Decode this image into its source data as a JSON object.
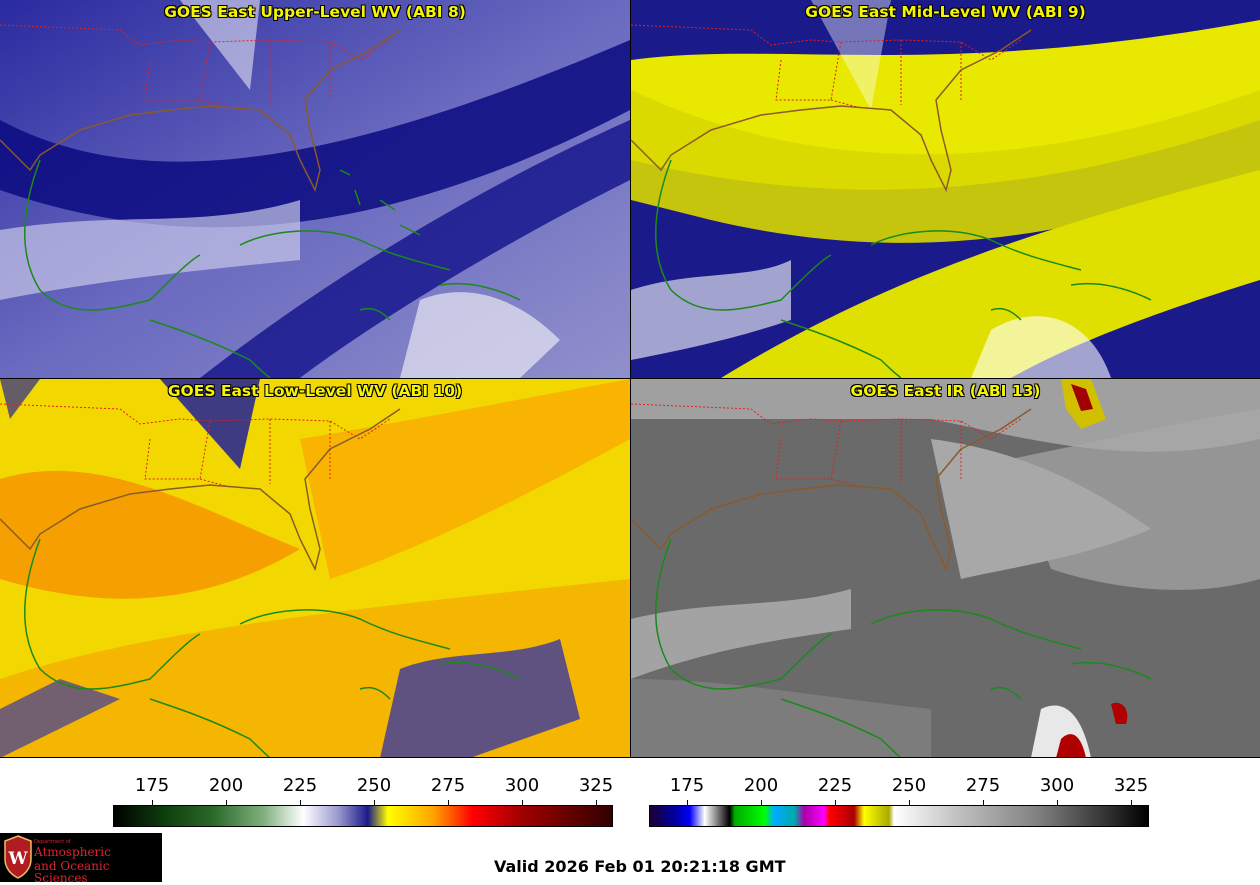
{
  "panels": [
    {
      "title": "GOES East Upper-Level WV (ABI 8)",
      "colormap": "wv"
    },
    {
      "title": "GOES East Mid-Level WV (ABI 9)",
      "colormap": "wv-yellow"
    },
    {
      "title": "GOES East Low-Level WV (ABI 10)",
      "colormap": "wv-orange"
    },
    {
      "title": "GOES East IR (ABI 13)",
      "colormap": "ir-gray"
    }
  ],
  "colorbars": [
    {
      "ticks": [
        "175",
        "200",
        "225",
        "250",
        "275",
        "300",
        "325"
      ]
    },
    {
      "ticks": [
        "175",
        "200",
        "225",
        "250",
        "275",
        "300",
        "325"
      ]
    }
  ],
  "logo": {
    "line1": "Department of",
    "line2": "Atmospheric",
    "line3": "and Oceanic Sciences",
    "shield_letter": "W"
  },
  "valid_time": "Valid 2026 Feb 01 20:21:18 GMT",
  "colors": {
    "title": "#f5f500",
    "state_borders": "#e02020",
    "coastlines": "#1a8a1a",
    "logo_red": "#d8262e"
  }
}
